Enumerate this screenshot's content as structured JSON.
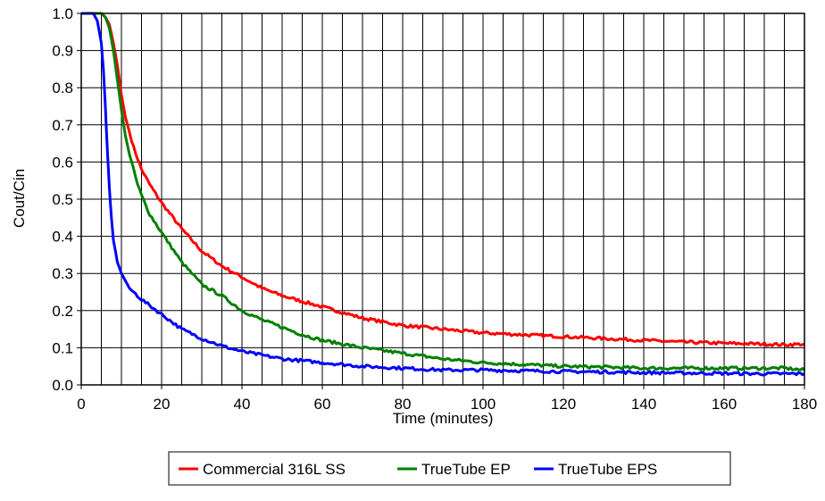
{
  "chart_data": {
    "type": "line",
    "title": "",
    "xlabel": "Time (minutes)",
    "ylabel": "Cout/Cin",
    "xlim": [
      0,
      180
    ],
    "ylim": [
      0,
      1
    ],
    "x_ticks": [
      "0",
      "20",
      "40",
      "60",
      "80",
      "100",
      "120",
      "140",
      "160",
      "180"
    ],
    "y_ticks": [
      "0.0",
      "0.1",
      "0.2",
      "0.3",
      "0.4",
      "0.5",
      "0.6",
      "0.7",
      "0.8",
      "0.9",
      "1.0"
    ],
    "grid": {
      "vertical": true,
      "horizontal": true,
      "minor_vertical_step": 5
    },
    "legend_position": "bottom",
    "series": [
      {
        "name": "Commercial 316L SS",
        "color": "#ff0000",
        "x": [
          0,
          5,
          6,
          7,
          8,
          9,
          10,
          11,
          12,
          13,
          14,
          15,
          17,
          20,
          25,
          30,
          35,
          40,
          45,
          50,
          55,
          60,
          65,
          70,
          80,
          90,
          100,
          110,
          120,
          130,
          140,
          150,
          160,
          170,
          175,
          180
        ],
        "y": [
          1.0,
          1.0,
          0.99,
          0.97,
          0.92,
          0.86,
          0.78,
          0.72,
          0.68,
          0.64,
          0.61,
          0.58,
          0.54,
          0.49,
          0.42,
          0.36,
          0.32,
          0.29,
          0.26,
          0.24,
          0.225,
          0.21,
          0.195,
          0.18,
          0.16,
          0.15,
          0.14,
          0.135,
          0.13,
          0.125,
          0.12,
          0.115,
          0.112,
          0.11,
          0.108,
          0.11
        ]
      },
      {
        "name": "TrueTube EP",
        "color": "#008000",
        "x": [
          0,
          5,
          6,
          7,
          8,
          9,
          10,
          11,
          12,
          13,
          14,
          15,
          17,
          20,
          25,
          30,
          35,
          40,
          45,
          50,
          55,
          60,
          65,
          70,
          80,
          90,
          100,
          110,
          120,
          130,
          140,
          150,
          160,
          170,
          175,
          180
        ],
        "y": [
          1.0,
          1.0,
          0.99,
          0.96,
          0.9,
          0.82,
          0.74,
          0.67,
          0.62,
          0.58,
          0.54,
          0.51,
          0.46,
          0.41,
          0.33,
          0.27,
          0.24,
          0.2,
          0.175,
          0.155,
          0.135,
          0.12,
          0.11,
          0.1,
          0.085,
          0.07,
          0.06,
          0.055,
          0.05,
          0.048,
          0.045,
          0.045,
          0.045,
          0.045,
          0.045,
          0.04
        ]
      },
      {
        "name": "TrueTube EPS",
        "color": "#0000ff",
        "x": [
          0,
          3,
          4,
          5,
          5.5,
          6,
          6.5,
          7,
          7.5,
          8,
          9,
          10,
          12,
          15,
          20,
          25,
          30,
          35,
          40,
          45,
          50,
          55,
          60,
          70,
          80,
          90,
          100,
          110,
          120,
          130,
          140,
          150,
          160,
          170,
          175,
          180
        ],
        "y": [
          1.0,
          1.0,
          0.98,
          0.92,
          0.85,
          0.75,
          0.63,
          0.53,
          0.45,
          0.39,
          0.33,
          0.3,
          0.26,
          0.23,
          0.19,
          0.15,
          0.125,
          0.105,
          0.09,
          0.08,
          0.07,
          0.065,
          0.06,
          0.05,
          0.045,
          0.04,
          0.04,
          0.038,
          0.036,
          0.035,
          0.033,
          0.032,
          0.031,
          0.03,
          0.03,
          0.03
        ]
      }
    ]
  }
}
